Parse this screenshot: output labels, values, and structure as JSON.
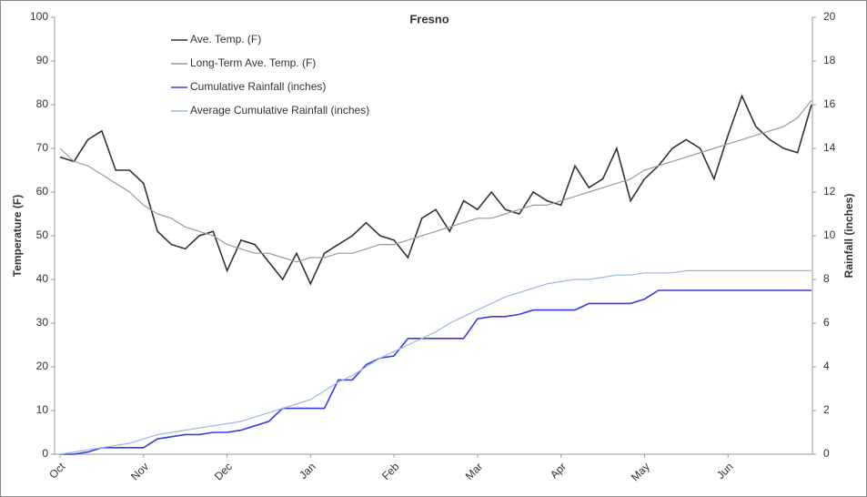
{
  "chart_data": {
    "type": "line",
    "title": "Fresno",
    "y_label": "Temperature (F)",
    "y2_label": "Rainfall (inches)",
    "categories": [
      "Oct",
      null,
      null,
      null,
      null,
      null,
      "Nov",
      null,
      null,
      null,
      null,
      null,
      "Dec",
      null,
      null,
      null,
      null,
      null,
      "Jan",
      null,
      null,
      null,
      null,
      null,
      "Feb",
      null,
      null,
      null,
      null,
      null,
      "Mar",
      null,
      null,
      null,
      null,
      null,
      "Apr",
      null,
      null,
      null,
      null,
      null,
      "May",
      null,
      null,
      null,
      null,
      null,
      "Jun",
      null,
      null,
      null,
      null,
      null,
      null
    ],
    "series": [
      {
        "name": "Ave. Temp. (F)",
        "color": "#333333",
        "values": [
          68,
          67,
          72,
          74,
          65,
          65,
          62,
          51,
          48,
          47,
          50,
          51,
          42,
          49,
          48,
          44,
          40,
          46,
          39,
          46,
          48,
          50,
          53,
          50,
          49,
          45,
          54,
          56,
          51,
          58,
          56,
          60,
          56,
          55,
          60,
          58,
          57,
          66,
          61,
          63,
          70,
          58,
          63,
          66,
          70,
          72,
          70,
          63,
          73,
          82,
          75,
          72,
          70,
          69,
          80
        ]
      },
      {
        "name": "Long-Term Ave. Temp. (F)",
        "color": "#9a9a9a",
        "values": [
          70,
          67,
          66,
          64,
          62,
          60,
          57,
          55,
          54,
          52,
          51,
          50,
          48,
          47,
          46,
          46,
          45,
          44,
          45,
          45,
          46,
          46,
          47,
          48,
          48,
          49,
          50,
          51,
          52,
          53,
          54,
          54,
          55,
          56,
          57,
          57,
          58,
          59,
          60,
          61,
          62,
          63,
          65,
          66,
          67,
          68,
          69,
          70,
          71,
          72,
          73,
          74,
          75,
          77,
          81
        ]
      },
      {
        "name": "Cumulative Rainfall (inches)",
        "color": "#3a3ae6",
        "axis": "y2",
        "values": [
          0,
          0,
          0.1,
          0.3,
          0.3,
          0.3,
          0.3,
          0.7,
          0.8,
          0.9,
          0.9,
          1.0,
          1.0,
          1.1,
          1.3,
          1.5,
          2.1,
          2.1,
          2.1,
          2.1,
          3.4,
          3.4,
          4.1,
          4.4,
          4.5,
          5.3,
          5.3,
          5.3,
          5.3,
          5.3,
          6.2,
          6.3,
          6.3,
          6.4,
          6.6,
          6.6,
          6.6,
          6.6,
          6.9,
          6.9,
          6.9,
          6.9,
          7.1,
          7.5,
          7.5,
          7.5,
          7.5,
          7.5,
          7.5,
          7.5,
          7.5,
          7.5,
          7.5,
          7.5,
          7.5
        ]
      },
      {
        "name": "Average Cumulative Rainfall (inches)",
        "color": "#9db6e6",
        "axis": "y2",
        "values": [
          0,
          0.1,
          0.2,
          0.3,
          0.4,
          0.5,
          0.7,
          0.9,
          1.0,
          1.1,
          1.2,
          1.3,
          1.4,
          1.5,
          1.7,
          1.9,
          2.1,
          2.3,
          2.5,
          2.9,
          3.3,
          3.6,
          4.0,
          4.4,
          4.7,
          5.0,
          5.3,
          5.6,
          6.0,
          6.3,
          6.6,
          6.9,
          7.2,
          7.4,
          7.6,
          7.8,
          7.9,
          8.0,
          8.0,
          8.1,
          8.2,
          8.2,
          8.3,
          8.3,
          8.3,
          8.4,
          8.4,
          8.4,
          8.4,
          8.4,
          8.4,
          8.4,
          8.4,
          8.4,
          8.4
        ]
      }
    ],
    "ylim": [
      0,
      100
    ],
    "yticks": [
      0,
      10,
      20,
      30,
      40,
      50,
      60,
      70,
      80,
      90,
      100
    ],
    "y2lim": [
      0,
      20
    ],
    "y2ticks": [
      0,
      2,
      4,
      6,
      8,
      10,
      12,
      14,
      16,
      18,
      20
    ],
    "grid": false,
    "legend": "upper left"
  }
}
